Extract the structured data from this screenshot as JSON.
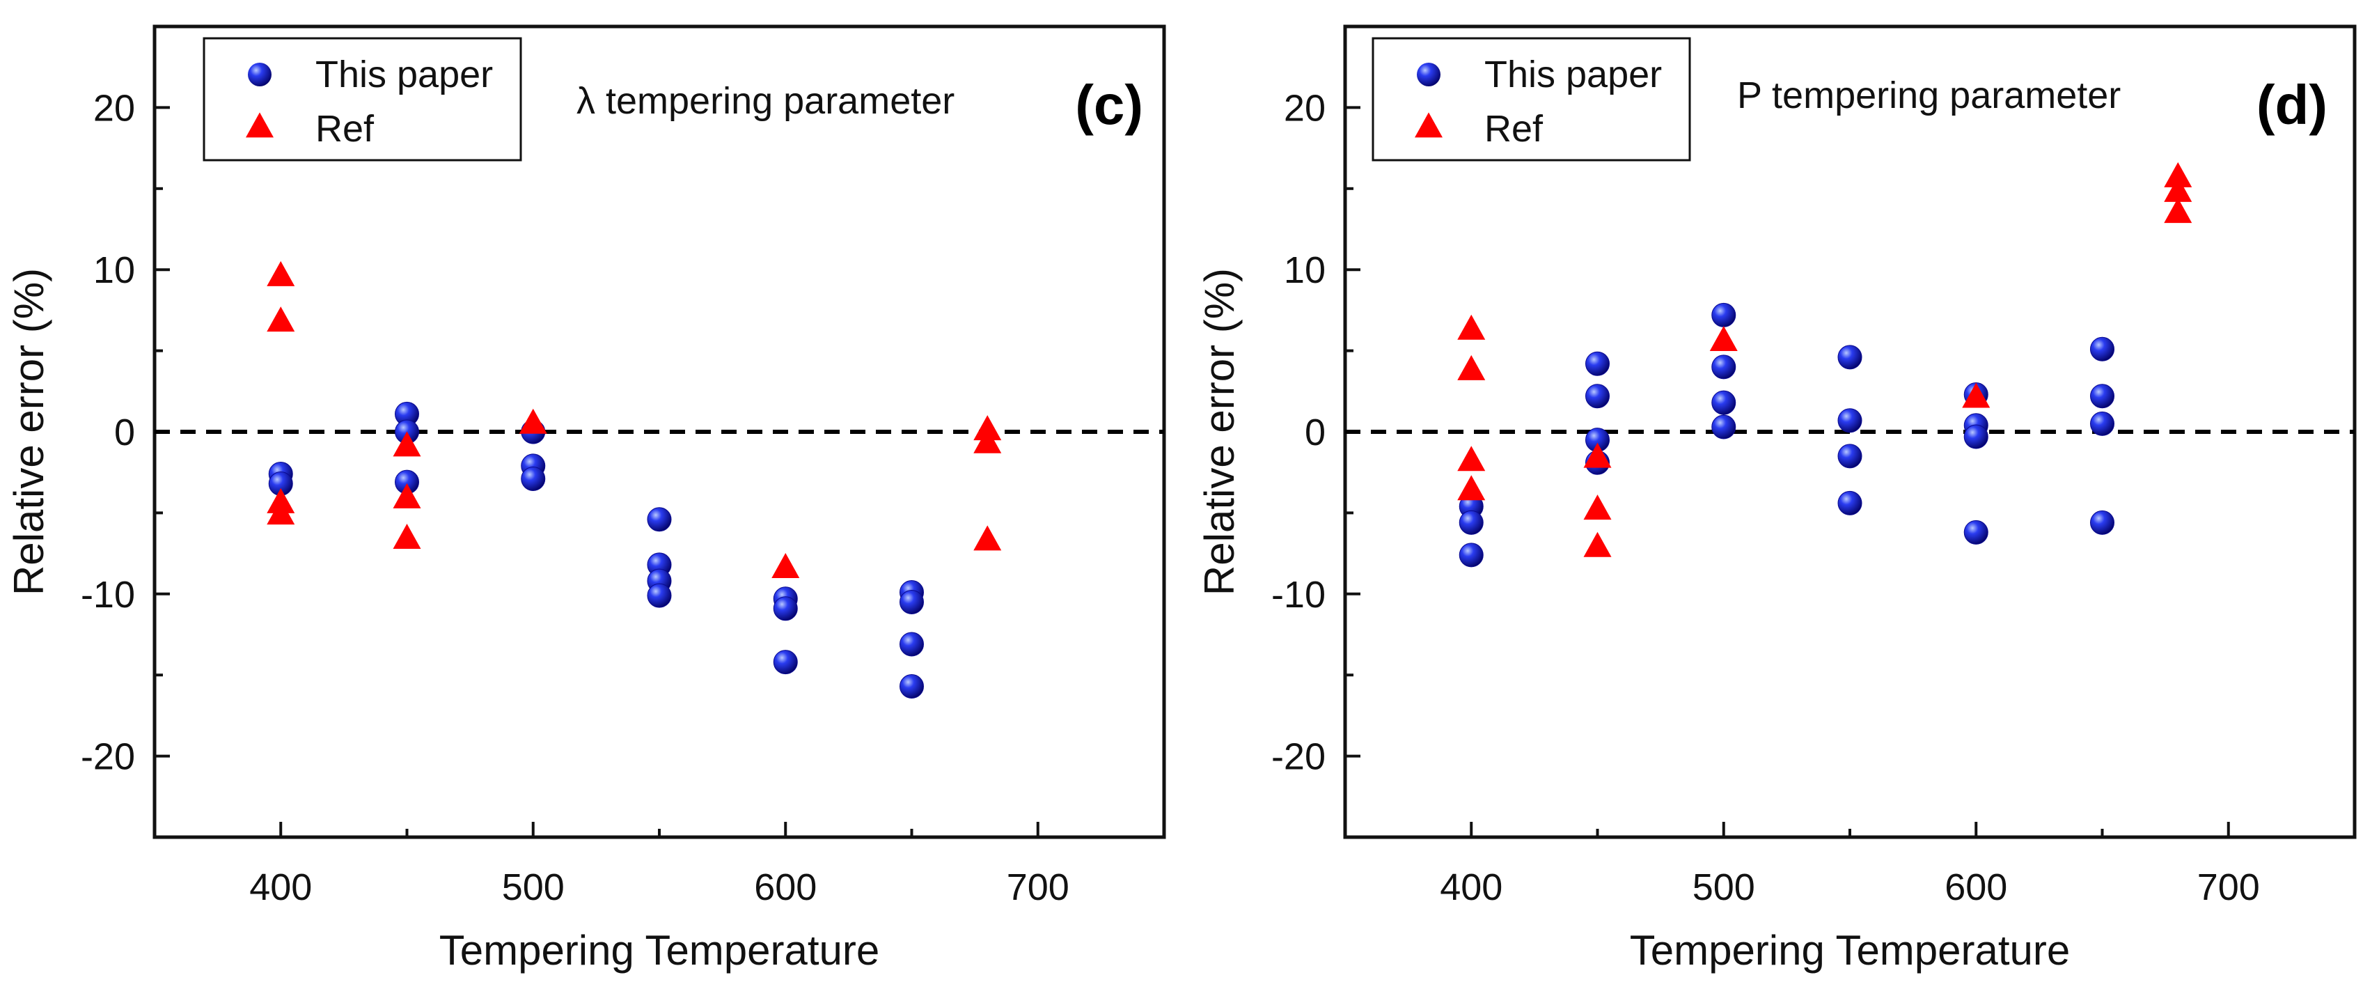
{
  "colors": {
    "series_blue": "#1010d8",
    "series_red": "#ff0000",
    "axis": "#111111",
    "zero_line": "#000000"
  },
  "chart_data": [
    {
      "type": "scatter",
      "panel_label": "(c)",
      "annotation": "λ tempering parameter",
      "xlabel": "Tempering Temperature",
      "ylabel": "Relative error (%)",
      "xlim": [
        350,
        750
      ],
      "ylim": [
        -25,
        25
      ],
      "x_ticks": [
        "400",
        "500",
        "600",
        "700"
      ],
      "y_ticks": [
        "20",
        "10",
        "0",
        "-10",
        "-20"
      ],
      "reference_line": 0,
      "legend": [
        "This paper",
        "Ref"
      ],
      "series": [
        {
          "name": "This paper",
          "marker": "circle",
          "points": [
            [
              400,
              -2.6
            ],
            [
              400,
              -3.2
            ],
            [
              450,
              1.1
            ],
            [
              450,
              0.0
            ],
            [
              450,
              -3.1
            ],
            [
              500,
              0.0
            ],
            [
              500,
              -2.1
            ],
            [
              500,
              -2.9
            ],
            [
              550,
              -5.4
            ],
            [
              550,
              -8.2
            ],
            [
              550,
              -9.2
            ],
            [
              550,
              -10.1
            ],
            [
              600,
              -10.3
            ],
            [
              600,
              -10.9
            ],
            [
              600,
              -14.2
            ],
            [
              650,
              -9.9
            ],
            [
              650,
              -10.5
            ],
            [
              650,
              -13.1
            ],
            [
              650,
              -15.7
            ]
          ]
        },
        {
          "name": "Ref",
          "marker": "triangle",
          "points": [
            [
              400,
              9.6
            ],
            [
              400,
              6.8
            ],
            [
              400,
              -4.4
            ],
            [
              400,
              -5.1
            ],
            [
              450,
              -0.9
            ],
            [
              450,
              -4.1
            ],
            [
              450,
              -6.6
            ],
            [
              500,
              0.5
            ],
            [
              600,
              -8.4
            ],
            [
              680,
              0.1
            ],
            [
              680,
              -0.7
            ],
            [
              680,
              -6.7
            ]
          ]
        }
      ]
    },
    {
      "type": "scatter",
      "panel_label": "(d)",
      "annotation": "P tempering parameter",
      "xlabel": "Tempering Temperature",
      "ylabel": "Relative error (%)",
      "xlim": [
        350,
        750
      ],
      "ylim": [
        -25,
        25
      ],
      "x_ticks": [
        "400",
        "500",
        "600",
        "700"
      ],
      "y_ticks": [
        "20",
        "10",
        "0",
        "-10",
        "-20"
      ],
      "reference_line": 0,
      "legend": [
        "This paper",
        "Ref"
      ],
      "series": [
        {
          "name": "This paper",
          "marker": "circle",
          "points": [
            [
              400,
              -4.6
            ],
            [
              400,
              -5.6
            ],
            [
              400,
              -7.6
            ],
            [
              450,
              4.2
            ],
            [
              450,
              2.2
            ],
            [
              450,
              -0.5
            ],
            [
              450,
              -1.9
            ],
            [
              500,
              7.2
            ],
            [
              500,
              4.0
            ],
            [
              500,
              1.8
            ],
            [
              500,
              0.3
            ],
            [
              550,
              4.6
            ],
            [
              550,
              0.7
            ],
            [
              550,
              -1.5
            ],
            [
              550,
              -4.4
            ],
            [
              600,
              2.3
            ],
            [
              600,
              0.4
            ],
            [
              600,
              -0.3
            ],
            [
              600,
              -6.2
            ],
            [
              650,
              5.1
            ],
            [
              650,
              2.2
            ],
            [
              650,
              0.5
            ],
            [
              650,
              -5.6
            ]
          ]
        },
        {
          "name": "Ref",
          "marker": "triangle",
          "points": [
            [
              400,
              6.3
            ],
            [
              400,
              3.8
            ],
            [
              400,
              -1.8
            ],
            [
              400,
              -3.6
            ],
            [
              450,
              -1.6
            ],
            [
              450,
              -4.8
            ],
            [
              450,
              -7.1
            ],
            [
              500,
              5.6
            ],
            [
              600,
              2.1
            ],
            [
              680,
              15.7
            ],
            [
              680,
              14.8
            ],
            [
              680,
              13.5
            ]
          ]
        }
      ]
    }
  ]
}
